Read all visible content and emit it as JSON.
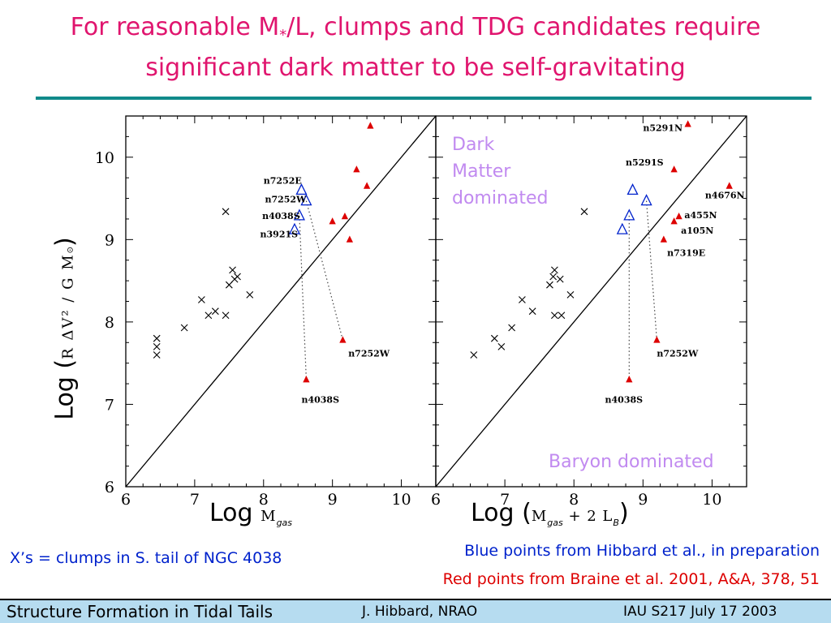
{
  "title": {
    "line1_pre": "For reasonable M",
    "line1_sub": "*",
    "line1_post": "/L, clumps and TDG candidates require",
    "line2": "significant dark matter to be self-gravitating"
  },
  "colors": {
    "title": "#e0156e",
    "blue": "#0022cc",
    "red": "#dd0000",
    "region": "#c18af0",
    "rule": "#108a8a",
    "footer": "#b6dcf0"
  },
  "chart_data": [
    {
      "type": "scatter",
      "panel": "left",
      "xlim": [
        6,
        10.5
      ],
      "ylim": [
        6,
        10.5
      ],
      "xticks": [
        "6",
        "7",
        "8",
        "9",
        "10"
      ],
      "yticks": [
        "6",
        "7",
        "8",
        "9",
        "10"
      ],
      "xlabel_pre": "Log",
      "xlabel_math": "M",
      "xlabel_sub": "gas",
      "ylabel_pre": "Log (",
      "ylabel_math": "R ΔV² / G M",
      "ylabel_sub": "⊙",
      "ylabel_post": ")",
      "one_to_one_line": true,
      "series": [
        {
          "marker": "x",
          "points": [
            [
              6.45,
              7.8
            ],
            [
              6.45,
              7.7
            ],
            [
              6.45,
              7.6
            ],
            [
              6.85,
              7.93
            ],
            [
              7.1,
              8.27
            ],
            [
              7.2,
              8.08
            ],
            [
              7.3,
              8.13
            ],
            [
              7.45,
              8.08
            ],
            [
              7.45,
              9.34
            ],
            [
              7.5,
              8.45
            ],
            [
              7.55,
              8.63
            ],
            [
              7.58,
              8.52
            ],
            [
              7.62,
              8.55
            ],
            [
              7.8,
              8.33
            ]
          ]
        },
        {
          "marker": "open-triangle",
          "points": [
            [
              8.55,
              9.6
            ],
            [
              8.62,
              9.47
            ],
            [
              8.52,
              9.29
            ],
            [
              8.45,
              9.12
            ]
          ]
        },
        {
          "marker": "filled-triangle",
          "points": [
            [
              9.55,
              10.38
            ],
            [
              9.35,
              9.85
            ],
            [
              9.5,
              9.65
            ],
            [
              9.0,
              9.22
            ],
            [
              9.18,
              9.28
            ],
            [
              9.25,
              9.0
            ],
            [
              9.15,
              7.78
            ],
            [
              8.62,
              7.3
            ]
          ]
        }
      ],
      "links": [
        [
          [
            8.52,
            9.29
          ],
          [
            8.62,
            7.3
          ]
        ],
        [
          [
            8.62,
            9.47
          ],
          [
            9.15,
            7.78
          ]
        ]
      ],
      "labels": [
        {
          "text": "n7252E",
          "x": 8.0,
          "y": 9.68
        },
        {
          "text": "n7252W",
          "x": 8.02,
          "y": 9.45
        },
        {
          "text": "n4038S",
          "x": 7.98,
          "y": 9.25
        },
        {
          "text": "n3921S",
          "x": 7.95,
          "y": 9.03
        },
        {
          "text": "n7252W",
          "x": 9.23,
          "y": 7.58
        },
        {
          "text": "n4038S",
          "x": 8.55,
          "y": 7.02
        }
      ]
    },
    {
      "type": "scatter",
      "panel": "right",
      "xlim": [
        6,
        10.5
      ],
      "ylim": [
        6,
        10.5
      ],
      "xticks": [
        "6",
        "7",
        "8",
        "9",
        "10"
      ],
      "xlabel_pre": "Log (",
      "xlabel_math": "M",
      "xlabel_sub": "gas",
      "xlabel_mid": " + 2 L",
      "xlabel_sub2": "B",
      "xlabel_post": ")",
      "one_to_one_line": true,
      "series": [
        {
          "marker": "x",
          "points": [
            [
              6.55,
              7.6
            ],
            [
              6.85,
              7.8
            ],
            [
              6.95,
              7.7
            ],
            [
              7.1,
              7.93
            ],
            [
              7.25,
              8.27
            ],
            [
              7.4,
              8.13
            ],
            [
              7.65,
              8.45
            ],
            [
              7.7,
              8.55
            ],
            [
              7.72,
              8.63
            ],
            [
              7.8,
              8.52
            ],
            [
              7.72,
              8.08
            ],
            [
              7.82,
              8.08
            ],
            [
              7.95,
              8.33
            ],
            [
              8.15,
              9.34
            ]
          ]
        },
        {
          "marker": "open-triangle",
          "points": [
            [
              8.85,
              9.6
            ],
            [
              9.05,
              9.47
            ],
            [
              8.8,
              9.29
            ],
            [
              8.7,
              9.12
            ]
          ]
        },
        {
          "marker": "filled-triangle",
          "points": [
            [
              9.65,
              10.4
            ],
            [
              9.45,
              9.85
            ],
            [
              10.25,
              9.65
            ],
            [
              9.45,
              9.22
            ],
            [
              9.52,
              9.28
            ],
            [
              9.3,
              9.0
            ],
            [
              9.2,
              7.78
            ],
            [
              8.8,
              7.3
            ]
          ]
        }
      ],
      "links": [
        [
          [
            8.8,
            9.29
          ],
          [
            8.8,
            7.3
          ]
        ],
        [
          [
            9.05,
            9.47
          ],
          [
            9.2,
            7.78
          ]
        ]
      ],
      "labels": [
        {
          "text": "n5291N",
          "x": 9.0,
          "y": 10.32
        },
        {
          "text": "n5291S",
          "x": 8.75,
          "y": 9.9
        },
        {
          "text": "n4676N",
          "x": 9.9,
          "y": 9.5
        },
        {
          "text": "a455N",
          "x": 9.6,
          "y": 9.26
        },
        {
          "text": "a105N",
          "x": 9.55,
          "y": 9.07
        },
        {
          "text": "n7319E",
          "x": 9.35,
          "y": 8.8
        },
        {
          "text": "n7252W",
          "x": 9.2,
          "y": 7.58
        },
        {
          "text": "n4038S",
          "x": 8.45,
          "y": 7.02
        }
      ]
    }
  ],
  "regions": {
    "dark1": "Dark",
    "dark2": "Matter",
    "dark3": "dominated",
    "baryon": "Baryon dominated"
  },
  "notes": {
    "clumps": "X’s = clumps in S. tail of NGC 4038",
    "blue": "Blue points from Hibbard et al., in preparation",
    "red": "Red points from Braine et al. 2001, A&A, 378, 51"
  },
  "footer": {
    "left": "Structure Formation in Tidal Tails",
    "center": "J. Hibbard, NRAO",
    "right": "IAU S217  July 17 2003"
  }
}
